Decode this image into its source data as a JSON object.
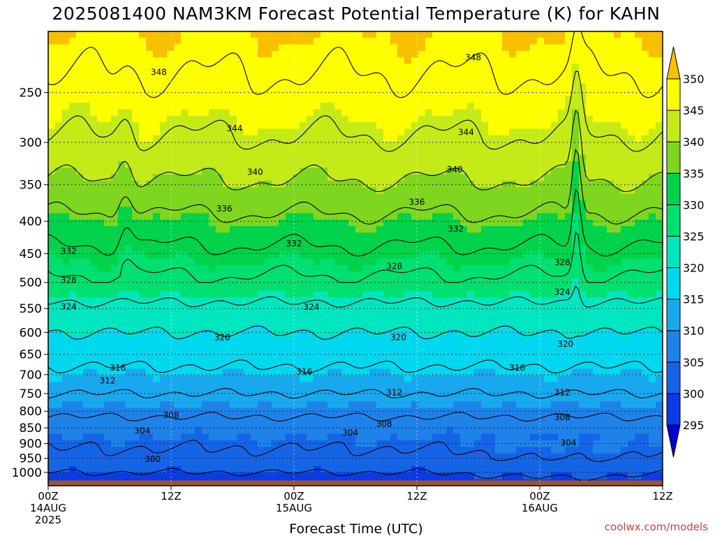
{
  "chart_data": {
    "type": "heatmap",
    "title": "2025081400 NAM3KM Forecast Potential Temperature (K) for KAHN",
    "xlabel": "Forecast Time (UTC)",
    "ylabel": "",
    "credit": "coolwx.com/models",
    "x_ticks": [
      {
        "hour": 0,
        "line1": "00Z",
        "line2": "14AUG",
        "line3": "2025"
      },
      {
        "hour": 12,
        "line1": "12Z",
        "line2": "",
        "line3": ""
      },
      {
        "hour": 24,
        "line1": "00Z",
        "line2": "15AUG",
        "line3": ""
      },
      {
        "hour": 36,
        "line1": "12Z",
        "line2": "",
        "line3": ""
      },
      {
        "hour": 48,
        "line1": "00Z",
        "line2": "16AUG",
        "line3": ""
      },
      {
        "hour": 60,
        "line1": "12Z",
        "line2": "",
        "line3": ""
      }
    ],
    "x_range_hours": [
      0,
      60
    ],
    "y_axis": "pressure_hPa",
    "y_scale": "log",
    "y_range": [
      1050,
      200
    ],
    "y_ticks": [
      250,
      300,
      350,
      400,
      450,
      500,
      550,
      600,
      650,
      700,
      750,
      800,
      850,
      900,
      950,
      1000
    ],
    "grid": "dotted",
    "surface_color": "#a0522d",
    "colorbar": {
      "position": "right",
      "levels": [
        295,
        300,
        305,
        310,
        315,
        320,
        325,
        330,
        335,
        340,
        345,
        350
      ],
      "tick_labels": [
        "295",
        "300",
        "305",
        "310",
        "315",
        "320",
        "325",
        "330",
        "335",
        "340",
        "345",
        "350"
      ],
      "colors": [
        "#0000d2",
        "#0a3ce6",
        "#1564e6",
        "#1e82e8",
        "#18a8ee",
        "#00d8f0",
        "#00e6c0",
        "#00e070",
        "#00d34a",
        "#7ed61e",
        "#c4ea18",
        "#ffff00",
        "#f8c000"
      ],
      "extend": "both"
    },
    "contour_levels": [
      300,
      304,
      308,
      312,
      316,
      320,
      324,
      328,
      332,
      336,
      340,
      344,
      348
    ],
    "theta_profile": {
      "pressure_hPa": [
        1000,
        950,
        900,
        850,
        800,
        750,
        700,
        650,
        600,
        550,
        500,
        450,
        400,
        350,
        300,
        250,
        210
      ],
      "theta_K": [
        300,
        303,
        304.5,
        306,
        309,
        312,
        315,
        317.5,
        320,
        323,
        327,
        331,
        335,
        339.5,
        343.5,
        347,
        349.5
      ]
    },
    "contour_labels": [
      {
        "text": "348",
        "hour": 10.8,
        "p": 232
      },
      {
        "text": "348",
        "hour": 41.5,
        "p": 220
      },
      {
        "text": "344",
        "hour": 18.2,
        "p": 285
      },
      {
        "text": "344",
        "hour": 40.8,
        "p": 289
      },
      {
        "text": "340",
        "hour": 20.2,
        "p": 334
      },
      {
        "text": "340",
        "hour": 39.7,
        "p": 331
      },
      {
        "text": "336",
        "hour": 17.2,
        "p": 382
      },
      {
        "text": "336",
        "hour": 36.0,
        "p": 373
      },
      {
        "text": "332",
        "hour": 2.0,
        "p": 446
      },
      {
        "text": "332",
        "hour": 24.0,
        "p": 434
      },
      {
        "text": "332",
        "hour": 39.8,
        "p": 411
      },
      {
        "text": "328",
        "hour": 2.0,
        "p": 496
      },
      {
        "text": "328",
        "hour": 33.8,
        "p": 471
      },
      {
        "text": "328",
        "hour": 50.2,
        "p": 465
      },
      {
        "text": "324",
        "hour": 2.0,
        "p": 546
      },
      {
        "text": "324",
        "hour": 25.7,
        "p": 547
      },
      {
        "text": "324",
        "hour": 50.2,
        "p": 518
      },
      {
        "text": "320",
        "hour": 17.0,
        "p": 611
      },
      {
        "text": "320",
        "hour": 34.2,
        "p": 611
      },
      {
        "text": "320",
        "hour": 50.5,
        "p": 626
      },
      {
        "text": "316",
        "hour": 6.8,
        "p": 683
      },
      {
        "text": "316",
        "hour": 25.0,
        "p": 692
      },
      {
        "text": "316",
        "hour": 45.8,
        "p": 683
      },
      {
        "text": "312",
        "hour": 5.8,
        "p": 716
      },
      {
        "text": "312",
        "hour": 33.8,
        "p": 747
      },
      {
        "text": "312",
        "hour": 50.2,
        "p": 747
      },
      {
        "text": "308",
        "hour": 12.0,
        "p": 812
      },
      {
        "text": "308",
        "hour": 32.8,
        "p": 838
      },
      {
        "text": "308",
        "hour": 50.2,
        "p": 818
      },
      {
        "text": "304",
        "hour": 9.2,
        "p": 860
      },
      {
        "text": "304",
        "hour": 29.5,
        "p": 865
      },
      {
        "text": "304",
        "hour": 50.8,
        "p": 898
      },
      {
        "text": "300",
        "hour": 10.2,
        "p": 953
      }
    ]
  }
}
